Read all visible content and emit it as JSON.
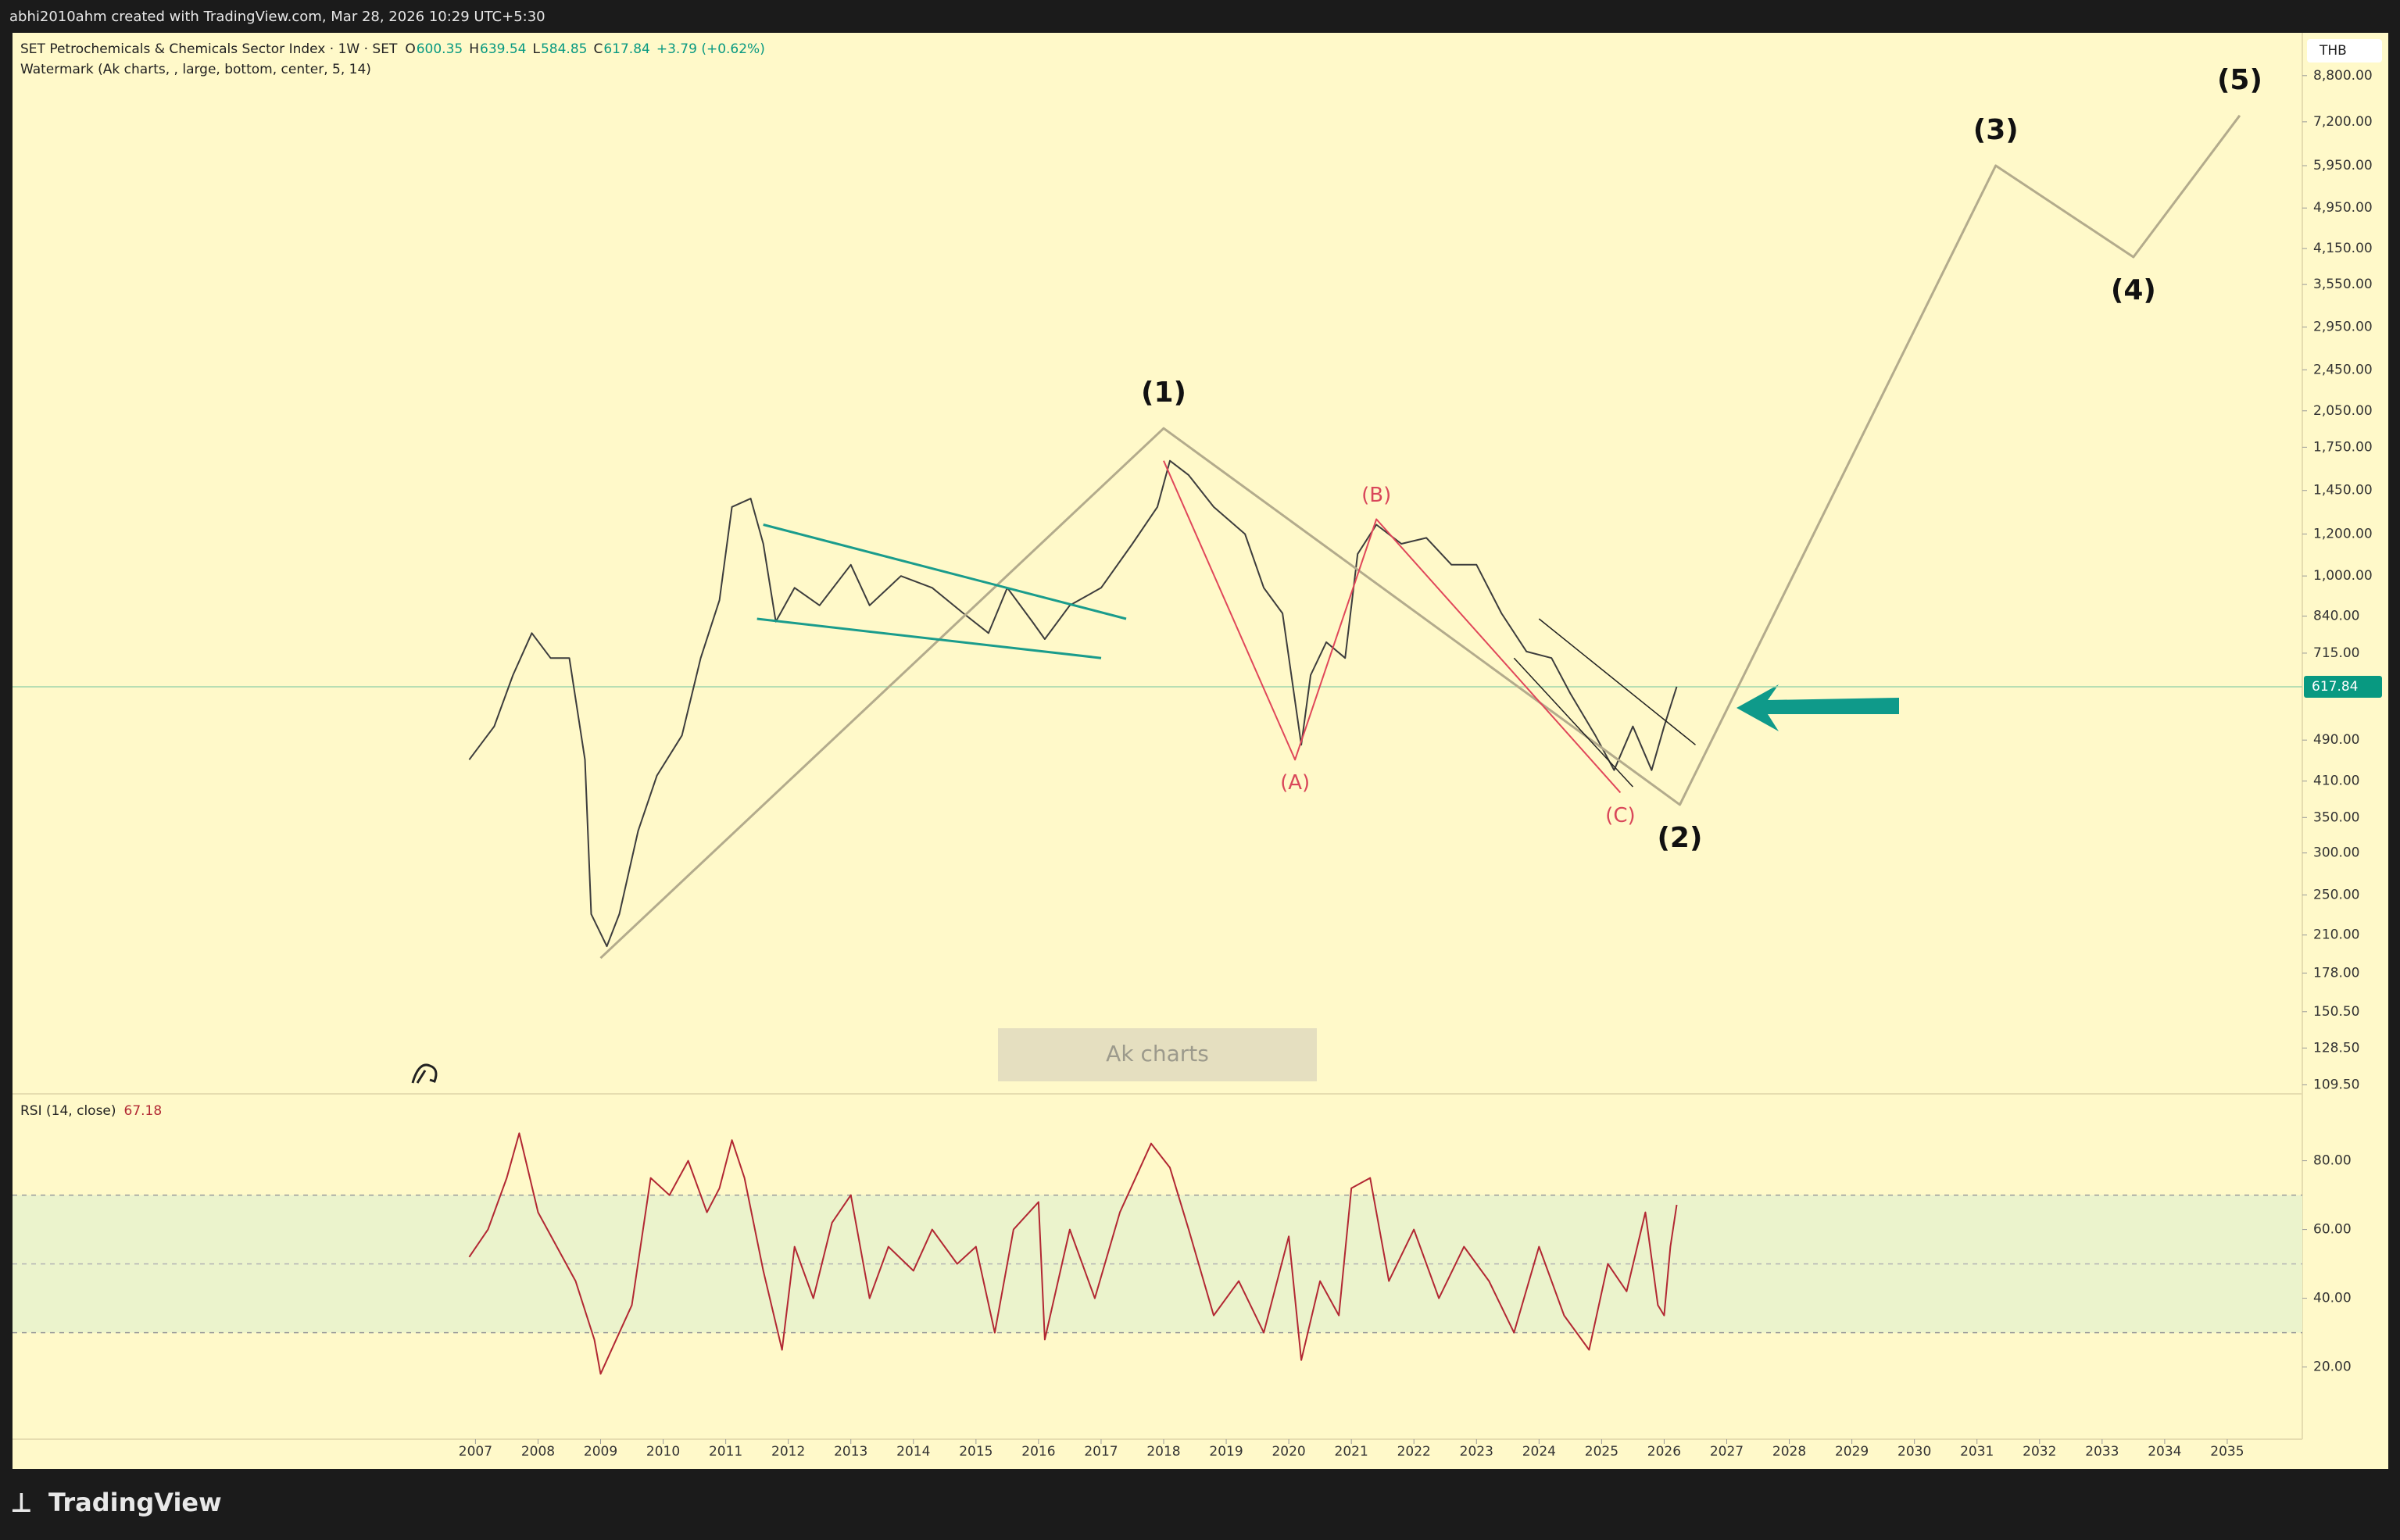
{
  "header": {
    "credit": "abhi2010ahm created with TradingView.com, Mar 28, 2026 10:29 UTC+5:30",
    "symbol": "SET Petrochemicals & Chemicals Sector Index · 1W · SET",
    "ohlc": [
      {
        "label": "O",
        "value": 600.35
      },
      {
        "label": "H",
        "value": 639.54
      },
      {
        "label": "L",
        "value": 584.85
      },
      {
        "label": "C",
        "value": 617.84
      }
    ],
    "change": "+3.79 (+0.62%)",
    "indicator": "Watermark (Ak charts, , large, bottom, center, 5, 14)",
    "currency": "THB",
    "watermark": "Ak charts",
    "brand": "TradingView"
  },
  "chart_data": [
    {
      "type": "line",
      "log_scale": true,
      "xlim": [
        1999.6,
        2036.2
      ],
      "ylim": [
        106,
        10600
      ],
      "yticks": [
        {
          "value": 8800,
          "label": "8,800.00"
        },
        {
          "value": 7200,
          "label": "7,200.00"
        },
        {
          "value": 5950,
          "label": "5,950.00"
        },
        {
          "value": 4950,
          "label": "4,950.00"
        },
        {
          "value": 4150,
          "label": "4,150.00"
        },
        {
          "value": 3550,
          "label": "3,550.00"
        },
        {
          "value": 2950,
          "label": "2,950.00"
        },
        {
          "value": 2450,
          "label": "2,450.00"
        },
        {
          "value": 2050,
          "label": "2,050.00"
        },
        {
          "value": 1750,
          "label": "1,750.00"
        },
        {
          "value": 1450,
          "label": "1,450.00"
        },
        {
          "value": 1200,
          "label": "1,200.00"
        },
        {
          "value": 1000,
          "label": "1,000.00"
        },
        {
          "value": 840,
          "label": "840.00"
        },
        {
          "value": 715,
          "label": "715.00"
        },
        {
          "value": 490,
          "label": "490.00"
        },
        {
          "value": 410,
          "label": "410.00"
        },
        {
          "value": 350,
          "label": "350.00"
        },
        {
          "value": 300,
          "label": "300.00"
        },
        {
          "value": 250,
          "label": "250.00"
        },
        {
          "value": 210,
          "label": "210.00"
        },
        {
          "value": 178,
          "label": "178.00"
        },
        {
          "value": 150.5,
          "label": "150.50"
        },
        {
          "value": 128.5,
          "label": "128.50"
        },
        {
          "value": 109.5,
          "label": "109.50"
        }
      ],
      "last_price": 617.84,
      "last_price_color": "#089981",
      "series": [
        {
          "color": "#3d3d3d",
          "width": 2,
          "x": [
            2006.9,
            2007.3,
            2007.6,
            2007.9,
            2008.2,
            2008.5,
            2008.75,
            2008.85,
            2009.1,
            2009.3,
            2009.6,
            2009.9,
            2010.3,
            2010.6,
            2010.9,
            2011.1,
            2011.4,
            2011.6,
            2011.8,
            2012.1,
            2012.5,
            2013.0,
            2013.3,
            2013.8,
            2014.3,
            2014.8,
            2015.2,
            2015.5,
            2015.9,
            2016.1,
            2016.5,
            2017.0,
            2017.5,
            2017.9,
            2018.1,
            2018.4,
            2018.8,
            2019.3,
            2019.6,
            2019.9,
            2020.2,
            2020.35,
            2020.6,
            2020.9,
            2021.1,
            2021.4,
            2021.8,
            2022.2,
            2022.6,
            2023.0,
            2023.4,
            2023.8,
            2024.2,
            2024.5,
            2024.9,
            2025.2,
            2025.5,
            2025.8,
            2026.0,
            2026.2
          ],
          "values": [
            450,
            520,
            650,
            780,
            700,
            700,
            450,
            230,
            200,
            230,
            330,
            420,
            500,
            700,
            900,
            1350,
            1400,
            1150,
            820,
            950,
            880,
            1050,
            880,
            1000,
            950,
            850,
            780,
            950,
            820,
            760,
            880,
            950,
            1150,
            1350,
            1650,
            1550,
            1350,
            1200,
            950,
            850,
            480,
            650,
            750,
            700,
            1100,
            1250,
            1150,
            1180,
            1050,
            1050,
            850,
            720,
            700,
            600,
            500,
            430,
            520,
            430,
            520,
            617.84
          ]
        },
        {
          "color": "#b3ab8c",
          "width": 3,
          "x": [
            2009.0,
            2018.0,
            2026.25,
            2031.3,
            2033.5,
            2035.2
          ],
          "values": [
            190,
            1900,
            370,
            5950,
            4000,
            7400
          ],
          "point_labels": [
            null,
            "(1)",
            "(2)",
            "(3)",
            "(4)",
            "(5)"
          ],
          "label_color": "#111111"
        },
        {
          "color": "#e0475a",
          "width": 2,
          "x": [
            2018.0,
            2020.1,
            2021.4,
            2025.3
          ],
          "values": [
            1650,
            450,
            1280,
            390
          ],
          "point_labels": [
            null,
            "(A)",
            "(B)",
            "(C)"
          ],
          "label_color": "#d9475a"
        },
        {
          "color": "#1a9c8c",
          "width": 3,
          "x": [
            2011.6,
            2017.4
          ],
          "values": [
            1250,
            830
          ]
        },
        {
          "color": "#1a9c8c",
          "width": 3,
          "x": [
            2011.5,
            2017.0
          ],
          "values": [
            830,
            700
          ]
        },
        {
          "color": "#222222",
          "width": 1.5,
          "x": [
            2024.0,
            2026.5
          ],
          "values": [
            830,
            480
          ]
        },
        {
          "color": "#222222",
          "width": 1.5,
          "x": [
            2023.6,
            2025.5
          ],
          "values": [
            700,
            400
          ]
        }
      ]
    },
    {
      "type": "line",
      "title": "RSI (14, close)",
      "last_value": 67.18,
      "xlim": [
        1999.6,
        2036.2
      ],
      "xticks": [
        2007,
        2008,
        2009,
        2010,
        2011,
        2012,
        2013,
        2014,
        2015,
        2016,
        2017,
        2018,
        2019,
        2020,
        2021,
        2022,
        2023,
        2024,
        2025,
        2026,
        2027,
        2028,
        2029,
        2030,
        2031,
        2032,
        2033,
        2034,
        2035
      ],
      "ylim": [
        -1,
        99
      ],
      "yticks": [
        {
          "value": 20,
          "label": "20.00"
        },
        {
          "value": 40,
          "label": "40.00"
        },
        {
          "value": 60,
          "label": "60.00"
        },
        {
          "value": 80,
          "label": "80.00"
        }
      ],
      "band": [
        30,
        70
      ],
      "midline": 50,
      "band_color": "#ebf3cc",
      "series": [
        {
          "color": "#b22833",
          "width": 2,
          "x": [
            2006.9,
            2007.2,
            2007.5,
            2007.7,
            2008.0,
            2008.3,
            2008.6,
            2008.9,
            2009.0,
            2009.3,
            2009.5,
            2009.8,
            2010.1,
            2010.4,
            2010.7,
            2010.9,
            2011.1,
            2011.3,
            2011.6,
            2011.9,
            2012.1,
            2012.4,
            2012.7,
            2013.0,
            2013.3,
            2013.6,
            2014.0,
            2014.3,
            2014.7,
            2015.0,
            2015.3,
            2015.6,
            2016.0,
            2016.1,
            2016.5,
            2016.9,
            2017.3,
            2017.8,
            2018.1,
            2018.4,
            2018.8,
            2019.2,
            2019.6,
            2020.0,
            2020.2,
            2020.5,
            2020.8,
            2021.0,
            2021.3,
            2021.6,
            2022.0,
            2022.4,
            2022.8,
            2023.2,
            2023.6,
            2024.0,
            2024.4,
            2024.8,
            2025.1,
            2025.4,
            2025.7,
            2025.9,
            2026.0,
            2026.1,
            2026.2
          ],
          "values": [
            52,
            60,
            75,
            88,
            65,
            55,
            45,
            28,
            18,
            30,
            38,
            75,
            70,
            80,
            65,
            72,
            86,
            75,
            48,
            25,
            55,
            40,
            62,
            70,
            40,
            55,
            48,
            60,
            50,
            55,
            30,
            60,
            68,
            28,
            60,
            40,
            65,
            85,
            78,
            60,
            35,
            45,
            30,
            58,
            22,
            45,
            35,
            72,
            75,
            45,
            60,
            40,
            55,
            45,
            30,
            55,
            35,
            25,
            50,
            42,
            65,
            38,
            35,
            55,
            67.18
          ]
        }
      ]
    }
  ]
}
